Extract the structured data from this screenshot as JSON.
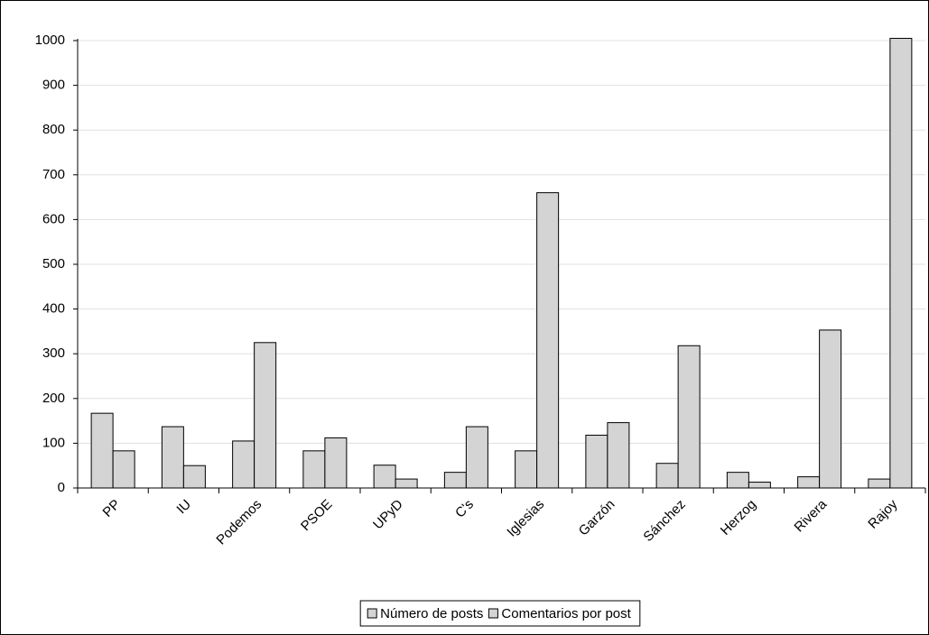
{
  "chart_data": {
    "type": "bar",
    "categories": [
      "PP",
      "IU",
      "Podemos",
      "PSOE",
      "UPyD",
      "C's",
      "Iglesias",
      "Garzón",
      "Sánchez",
      "Herzog",
      "Rivera",
      "Rajoy"
    ],
    "series": [
      {
        "name": "Número de posts",
        "color": "#d4d4d4",
        "values": [
          167,
          137,
          105,
          83,
          51,
          35,
          83,
          118,
          55,
          35,
          25,
          20
        ]
      },
      {
        "name": "Comentarios por post",
        "color": "#d4d4d4",
        "values": [
          83,
          50,
          325,
          112,
          20,
          137,
          660,
          146,
          318,
          13,
          353,
          1005
        ]
      }
    ],
    "ylim": [
      0,
      1000
    ],
    "yticks": [
      0,
      100,
      200,
      300,
      400,
      500,
      600,
      700,
      800,
      900,
      1000
    ],
    "grid": true,
    "legend": "bottom"
  }
}
